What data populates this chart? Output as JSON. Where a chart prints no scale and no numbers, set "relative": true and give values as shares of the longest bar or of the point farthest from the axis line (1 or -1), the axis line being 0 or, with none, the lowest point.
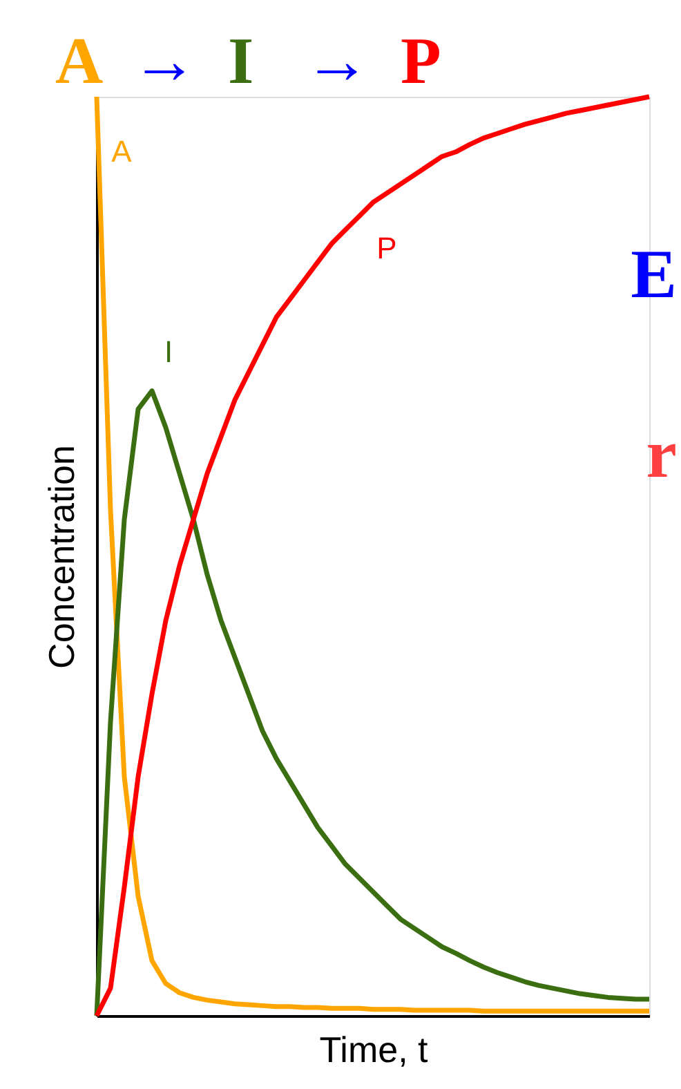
{
  "chart_data": {
    "type": "line",
    "relative": true,
    "title": "A → I → P",
    "xlabel": "Time, t",
    "ylabel": "Concentration",
    "categories": [
      null,
      null,
      null,
      null,
      null,
      null,
      null,
      null,
      null,
      null,
      null,
      null,
      null,
      null,
      null,
      null,
      null,
      null,
      null,
      null,
      null,
      null,
      null,
      null,
      null,
      null,
      null,
      null,
      null,
      null,
      null,
      null,
      null,
      null,
      null,
      null,
      null,
      null,
      null,
      null,
      null
    ],
    "series": [
      {
        "name": "A",
        "color": "#ffa500",
        "values": [
          1.0,
          0.55,
          0.26,
          0.13,
          0.06,
          0.035,
          0.025,
          0.02,
          0.017,
          0.015,
          0.013,
          0.012,
          0.011,
          0.01,
          0.01,
          0.009,
          0.009,
          0.008,
          0.008,
          0.008,
          0.007,
          0.007,
          0.007,
          0.006,
          0.006,
          0.006,
          0.006,
          0.006,
          0.005,
          0.005,
          0.005,
          0.005,
          0.005,
          0.005,
          0.005,
          0.005,
          0.005,
          0.005,
          0.005,
          0.005,
          0.005
        ]
      },
      {
        "name": "I",
        "color": "#3a6e10",
        "values": [
          0,
          0.32,
          0.54,
          0.66,
          0.68,
          0.64,
          0.59,
          0.54,
          0.48,
          0.43,
          0.39,
          0.35,
          0.31,
          0.28,
          0.255,
          0.23,
          0.205,
          0.185,
          0.165,
          0.15,
          0.135,
          0.12,
          0.105,
          0.095,
          0.085,
          0.075,
          0.068,
          0.06,
          0.053,
          0.047,
          0.042,
          0.037,
          0.033,
          0.03,
          0.027,
          0.024,
          0.022,
          0.02,
          0.019,
          0.018,
          0.018
        ]
      },
      {
        "name": "P",
        "color": "#ff0000",
        "values": [
          0,
          0.03,
          0.14,
          0.26,
          0.35,
          0.43,
          0.49,
          0.54,
          0.59,
          0.63,
          0.67,
          0.7,
          0.73,
          0.76,
          0.78,
          0.8,
          0.82,
          0.84,
          0.855,
          0.87,
          0.885,
          0.895,
          0.905,
          0.915,
          0.925,
          0.935,
          0.94,
          0.948,
          0.955,
          0.96,
          0.965,
          0.97,
          0.974,
          0.978,
          0.982,
          0.985,
          0.988,
          0.991,
          0.994,
          0.997,
          1.0
        ]
      }
    ],
    "annotations": [
      "E",
      "r"
    ],
    "legend": false,
    "marker": "none",
    "line_style": "solid"
  }
}
